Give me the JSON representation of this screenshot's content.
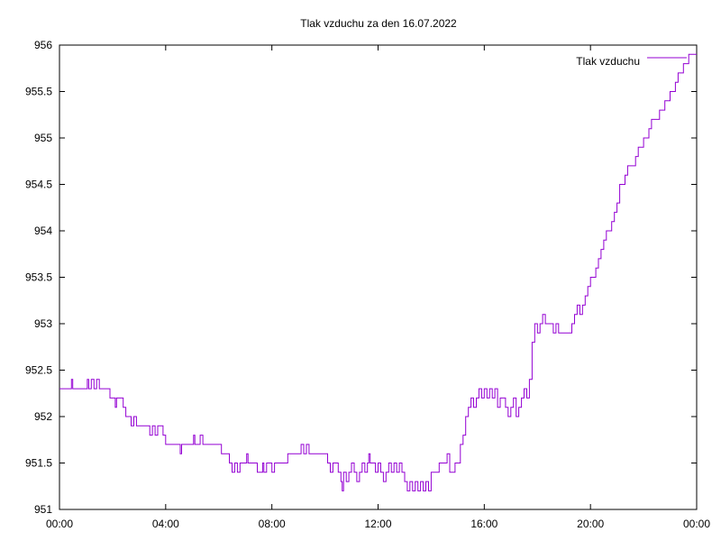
{
  "chart_data": {
    "type": "line",
    "title": "Tlak vzduchu za den 16.07.2022",
    "xlabel": "",
    "ylabel": "",
    "x_unit": "hours",
    "xlim": [
      0,
      24
    ],
    "ylim": [
      951,
      956
    ],
    "x_ticks": [
      {
        "value": 0,
        "label": "00:00"
      },
      {
        "value": 4,
        "label": "04:00"
      },
      {
        "value": 8,
        "label": "08:00"
      },
      {
        "value": 12,
        "label": "12:00"
      },
      {
        "value": 16,
        "label": "16:00"
      },
      {
        "value": 20,
        "label": "20:00"
      },
      {
        "value": 24,
        "label": "00:00"
      }
    ],
    "y_ticks": [
      {
        "value": 951,
        "label": "951"
      },
      {
        "value": 951.5,
        "label": "951.5"
      },
      {
        "value": 952,
        "label": "952"
      },
      {
        "value": 952.5,
        "label": "952.5"
      },
      {
        "value": 953,
        "label": "953"
      },
      {
        "value": 953.5,
        "label": "953.5"
      },
      {
        "value": 954,
        "label": "954"
      },
      {
        "value": 954.5,
        "label": "954.5"
      },
      {
        "value": 955,
        "label": "955"
      },
      {
        "value": 955.5,
        "label": "955.5"
      },
      {
        "value": 956,
        "label": "956"
      }
    ],
    "grid": false,
    "legend_position": "top-right",
    "series": [
      {
        "name": "Tlak vzduchu",
        "color": "#9400d3",
        "points": [
          [
            0.0,
            952.3
          ],
          [
            0.4,
            952.3
          ],
          [
            0.45,
            952.4
          ],
          [
            0.5,
            952.3
          ],
          [
            1.0,
            952.3
          ],
          [
            1.05,
            952.4
          ],
          [
            1.1,
            952.3
          ],
          [
            1.2,
            952.4
          ],
          [
            1.3,
            952.3
          ],
          [
            1.4,
            952.4
          ],
          [
            1.5,
            952.3
          ],
          [
            1.8,
            952.3
          ],
          [
            1.9,
            952.2
          ],
          [
            2.0,
            952.2
          ],
          [
            2.1,
            952.1
          ],
          [
            2.15,
            952.2
          ],
          [
            2.3,
            952.2
          ],
          [
            2.4,
            952.1
          ],
          [
            2.5,
            952.0
          ],
          [
            2.6,
            952.0
          ],
          [
            2.7,
            951.9
          ],
          [
            2.8,
            952.0
          ],
          [
            2.9,
            951.9
          ],
          [
            3.3,
            951.9
          ],
          [
            3.4,
            951.8
          ],
          [
            3.5,
            951.9
          ],
          [
            3.6,
            951.8
          ],
          [
            3.7,
            951.9
          ],
          [
            3.9,
            951.8
          ],
          [
            4.0,
            951.7
          ],
          [
            4.5,
            951.7
          ],
          [
            4.55,
            951.6
          ],
          [
            4.6,
            951.7
          ],
          [
            5.0,
            951.7
          ],
          [
            5.05,
            951.8
          ],
          [
            5.1,
            951.7
          ],
          [
            5.3,
            951.8
          ],
          [
            5.4,
            951.7
          ],
          [
            5.5,
            951.7
          ],
          [
            6.0,
            951.7
          ],
          [
            6.1,
            951.6
          ],
          [
            6.3,
            951.6
          ],
          [
            6.4,
            951.5
          ],
          [
            6.5,
            951.4
          ],
          [
            6.6,
            951.5
          ],
          [
            6.7,
            951.4
          ],
          [
            6.8,
            951.5
          ],
          [
            7.0,
            951.5
          ],
          [
            7.05,
            951.6
          ],
          [
            7.1,
            951.5
          ],
          [
            7.4,
            951.5
          ],
          [
            7.45,
            951.4
          ],
          [
            7.6,
            951.4
          ],
          [
            7.65,
            951.5
          ],
          [
            7.7,
            951.4
          ],
          [
            7.8,
            951.5
          ],
          [
            7.9,
            951.5
          ],
          [
            8.0,
            951.4
          ],
          [
            8.1,
            951.5
          ],
          [
            8.5,
            951.5
          ],
          [
            8.6,
            951.6
          ],
          [
            9.0,
            951.6
          ],
          [
            9.1,
            951.7
          ],
          [
            9.2,
            951.6
          ],
          [
            9.3,
            951.7
          ],
          [
            9.4,
            951.6
          ],
          [
            10.0,
            951.6
          ],
          [
            10.1,
            951.5
          ],
          [
            10.2,
            951.4
          ],
          [
            10.3,
            951.5
          ],
          [
            10.5,
            951.4
          ],
          [
            10.6,
            951.3
          ],
          [
            10.65,
            951.2
          ],
          [
            10.7,
            951.4
          ],
          [
            10.8,
            951.3
          ],
          [
            10.9,
            951.4
          ],
          [
            11.0,
            951.5
          ],
          [
            11.1,
            951.4
          ],
          [
            11.2,
            951.3
          ],
          [
            11.3,
            951.4
          ],
          [
            11.4,
            951.5
          ],
          [
            11.5,
            951.4
          ],
          [
            11.6,
            951.5
          ],
          [
            11.65,
            951.6
          ],
          [
            11.7,
            951.5
          ],
          [
            11.8,
            951.5
          ],
          [
            11.9,
            951.4
          ],
          [
            12.0,
            951.5
          ],
          [
            12.1,
            951.4
          ],
          [
            12.2,
            951.3
          ],
          [
            12.3,
            951.4
          ],
          [
            12.4,
            951.5
          ],
          [
            12.5,
            951.4
          ],
          [
            12.6,
            951.5
          ],
          [
            12.7,
            951.4
          ],
          [
            12.8,
            951.5
          ],
          [
            12.9,
            951.4
          ],
          [
            13.0,
            951.3
          ],
          [
            13.1,
            951.2
          ],
          [
            13.2,
            951.3
          ],
          [
            13.3,
            951.2
          ],
          [
            13.4,
            951.3
          ],
          [
            13.5,
            951.2
          ],
          [
            13.6,
            951.3
          ],
          [
            13.7,
            951.2
          ],
          [
            13.8,
            951.3
          ],
          [
            13.9,
            951.2
          ],
          [
            14.0,
            951.4
          ],
          [
            14.2,
            951.4
          ],
          [
            14.3,
            951.5
          ],
          [
            14.5,
            951.5
          ],
          [
            14.6,
            951.6
          ],
          [
            14.7,
            951.4
          ],
          [
            14.9,
            951.5
          ],
          [
            15.0,
            951.5
          ],
          [
            15.1,
            951.7
          ],
          [
            15.2,
            951.8
          ],
          [
            15.3,
            952.0
          ],
          [
            15.4,
            952.1
          ],
          [
            15.5,
            952.2
          ],
          [
            15.6,
            952.1
          ],
          [
            15.7,
            952.2
          ],
          [
            15.8,
            952.3
          ],
          [
            15.9,
            952.2
          ],
          [
            16.0,
            952.3
          ],
          [
            16.1,
            952.2
          ],
          [
            16.2,
            952.3
          ],
          [
            16.3,
            952.2
          ],
          [
            16.4,
            952.3
          ],
          [
            16.5,
            952.1
          ],
          [
            16.6,
            952.2
          ],
          [
            16.7,
            952.2
          ],
          [
            16.8,
            952.1
          ],
          [
            16.9,
            952.0
          ],
          [
            17.0,
            952.1
          ],
          [
            17.1,
            952.2
          ],
          [
            17.2,
            952.0
          ],
          [
            17.3,
            952.1
          ],
          [
            17.4,
            952.2
          ],
          [
            17.5,
            952.3
          ],
          [
            17.6,
            952.2
          ],
          [
            17.7,
            952.4
          ],
          [
            17.8,
            952.8
          ],
          [
            17.9,
            953.0
          ],
          [
            18.0,
            952.9
          ],
          [
            18.1,
            953.0
          ],
          [
            18.2,
            953.1
          ],
          [
            18.3,
            953.0
          ],
          [
            18.5,
            953.0
          ],
          [
            18.6,
            952.9
          ],
          [
            18.7,
            953.0
          ],
          [
            18.8,
            952.9
          ],
          [
            19.2,
            952.9
          ],
          [
            19.3,
            953.0
          ],
          [
            19.4,
            953.1
          ],
          [
            19.5,
            953.2
          ],
          [
            19.6,
            953.1
          ],
          [
            19.7,
            953.2
          ],
          [
            19.8,
            953.3
          ],
          [
            19.9,
            953.4
          ],
          [
            20.0,
            953.5
          ],
          [
            20.2,
            953.6
          ],
          [
            20.3,
            953.7
          ],
          [
            20.4,
            953.8
          ],
          [
            20.5,
            953.9
          ],
          [
            20.6,
            954.0
          ],
          [
            20.7,
            954.0
          ],
          [
            20.8,
            954.1
          ],
          [
            20.9,
            954.2
          ],
          [
            21.0,
            954.3
          ],
          [
            21.1,
            954.5
          ],
          [
            21.2,
            954.5
          ],
          [
            21.3,
            954.6
          ],
          [
            21.4,
            954.7
          ],
          [
            21.6,
            954.7
          ],
          [
            21.7,
            954.8
          ],
          [
            21.8,
            954.9
          ],
          [
            21.9,
            954.9
          ],
          [
            22.0,
            955.0
          ],
          [
            22.1,
            955.0
          ],
          [
            22.2,
            955.1
          ],
          [
            22.3,
            955.2
          ],
          [
            22.5,
            955.2
          ],
          [
            22.6,
            955.3
          ],
          [
            22.7,
            955.3
          ],
          [
            22.8,
            955.4
          ],
          [
            22.9,
            955.4
          ],
          [
            23.0,
            955.5
          ],
          [
            23.1,
            955.5
          ],
          [
            23.2,
            955.6
          ],
          [
            23.3,
            955.7
          ],
          [
            23.4,
            955.7
          ],
          [
            23.5,
            955.8
          ],
          [
            23.6,
            955.8
          ],
          [
            23.7,
            955.9
          ],
          [
            24.0,
            955.9
          ]
        ]
      }
    ]
  }
}
